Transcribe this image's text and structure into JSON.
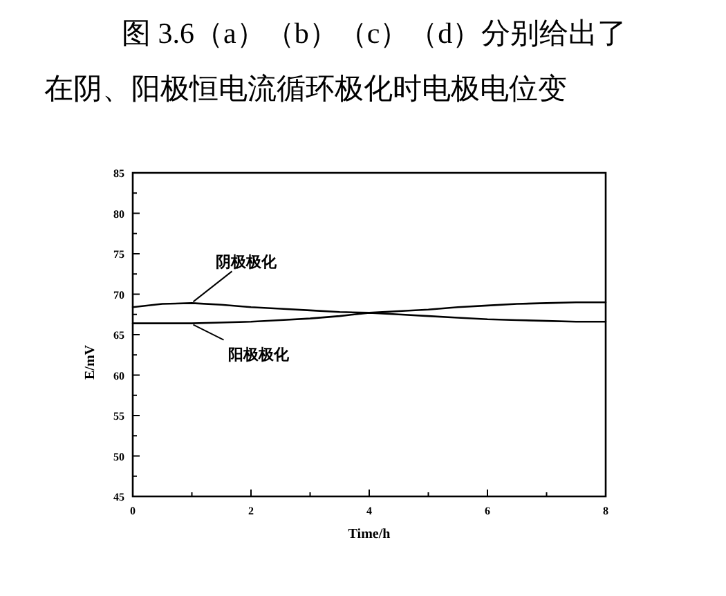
{
  "chart_data": {
    "type": "line",
    "annotations": [
      "图 3.6（a）（b）（c）（d）分别给出了",
      "在阴、阳极恒电流循环极化时电极电位变"
    ],
    "xlabel": "Time/h",
    "ylabel": "E/mV",
    "x": [
      0,
      0.5,
      1,
      1.5,
      2,
      2.5,
      3,
      3.5,
      4,
      4.5,
      5,
      5.5,
      6,
      6.5,
      7,
      7.5,
      8
    ],
    "series": [
      {
        "name": "阴极极化",
        "color": "#000000",
        "values": [
          68.4,
          68.8,
          68.9,
          68.7,
          68.4,
          68.2,
          68.0,
          67.8,
          67.7,
          67.9,
          68.1,
          68.4,
          68.6,
          68.8,
          68.9,
          69.0,
          69.0
        ]
      },
      {
        "name": "阳极极化",
        "color": "#000000",
        "values": [
          66.4,
          66.4,
          66.4,
          66.5,
          66.6,
          66.8,
          67.0,
          67.3,
          67.7,
          67.5,
          67.3,
          67.1,
          66.9,
          66.8,
          66.7,
          66.6,
          66.6
        ]
      }
    ],
    "xlim": [
      0,
      8
    ],
    "ylim": [
      45,
      85
    ],
    "xticks": [
      0,
      {
        "value": 1,
        "label": null
      },
      2,
      {
        "value": 3,
        "label": null
      },
      4,
      {
        "value": 5,
        "label": null
      },
      6,
      {
        "value": 7,
        "label": null
      },
      8
    ],
    "yticks": [
      45,
      {
        "value": 47.5,
        "label": null
      },
      50,
      {
        "value": 52.5,
        "label": null
      },
      55,
      {
        "value": 57.5,
        "label": null
      },
      60,
      {
        "value": 62.5,
        "label": null
      },
      65,
      {
        "value": 67.5,
        "label": null
      },
      70,
      {
        "value": 72.5,
        "label": null
      },
      75,
      {
        "value": 77.5,
        "label": null
      },
      80,
      {
        "value": 82.5,
        "label": null
      },
      85
    ]
  }
}
